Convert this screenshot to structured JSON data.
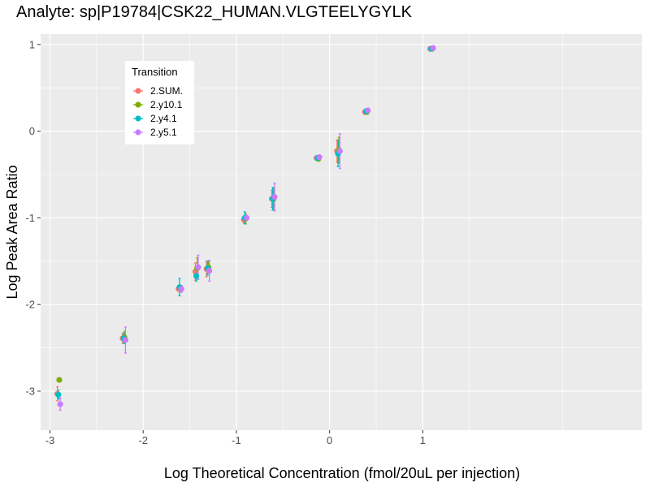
{
  "chart_data": {
    "type": "scatter",
    "title": "Analyte: sp|P19784|CSK22_HUMAN.VLGTEELYGYLK",
    "xlabel": "Log Theoretical Concentration (fmol/20uL per injection)",
    "ylabel": "Log Peak Area Ratio",
    "xlim": [
      -3.1,
      3.35
    ],
    "ylim": [
      -3.45,
      1.12
    ],
    "x_ticks": [
      -3,
      -2,
      -1,
      0,
      1
    ],
    "x_tick_labels": [
      "-3",
      "-2",
      "-1",
      "0",
      "1"
    ],
    "y_ticks": [
      -3,
      -2,
      -1,
      0,
      1
    ],
    "y_tick_labels": [
      "-3",
      "-2",
      "-1",
      "0",
      "1"
    ],
    "grid": true,
    "legend": {
      "title": "Transition",
      "position": "top-left inside"
    },
    "series": [
      {
        "name": "2.SUM.",
        "color": "#F8766D",
        "points": [
          {
            "x": -2.92,
            "y": -3.03,
            "err": 0.08
          },
          {
            "x": -2.22,
            "y": -2.39,
            "err": 0.05
          },
          {
            "x": -1.62,
            "y": -1.82,
            "err": 0.02
          },
          {
            "x": -1.44,
            "y": -1.62,
            "err": 0.1
          },
          {
            "x": -1.32,
            "y": -1.59,
            "err": 0.09
          },
          {
            "x": -0.92,
            "y": -1.02,
            "err": 0.04
          },
          {
            "x": -0.62,
            "y": -0.78,
            "err": 0.1
          },
          {
            "x": -0.14,
            "y": -0.31,
            "err": 0.02
          },
          {
            "x": 0.08,
            "y": -0.23,
            "err": 0.13
          },
          {
            "x": 0.38,
            "y": 0.22,
            "err": 0.01
          },
          {
            "x": 1.08,
            "y": 0.95,
            "err": 0.01
          }
        ]
      },
      {
        "name": "2.y10.1",
        "color": "#7CAE00",
        "points": [
          {
            "x": -2.9,
            "y": -2.87,
            "err": 0.0
          },
          {
            "x": -2.2,
            "y": -2.38,
            "err": 0.07
          },
          {
            "x": -1.6,
            "y": -1.81,
            "err": 0.03
          },
          {
            "x": -1.42,
            "y": -1.58,
            "err": 0.12
          },
          {
            "x": -1.3,
            "y": -1.57,
            "err": 0.07
          },
          {
            "x": -0.9,
            "y": -1.01,
            "err": 0.06
          },
          {
            "x": -0.6,
            "y": -0.78,
            "err": 0.13
          },
          {
            "x": -0.12,
            "y": -0.32,
            "err": 0.02
          },
          {
            "x": 0.1,
            "y": -0.22,
            "err": 0.15
          },
          {
            "x": 0.4,
            "y": 0.22,
            "err": 0.01
          },
          {
            "x": 1.1,
            "y": 0.95,
            "err": 0.02
          }
        ]
      },
      {
        "name": "2.y4.1",
        "color": "#00BFC4",
        "points": [
          {
            "x": -2.91,
            "y": -3.04,
            "err": 0.05
          },
          {
            "x": -2.21,
            "y": -2.39,
            "err": 0.06
          },
          {
            "x": -1.61,
            "y": -1.8,
            "err": 0.1
          },
          {
            "x": -1.43,
            "y": -1.67,
            "err": 0.06
          },
          {
            "x": -1.31,
            "y": -1.58,
            "err": 0.08
          },
          {
            "x": -0.91,
            "y": -1.0,
            "err": 0.07
          },
          {
            "x": -0.61,
            "y": -0.78,
            "err": 0.13
          },
          {
            "x": -0.13,
            "y": -0.31,
            "err": 0.03
          },
          {
            "x": 0.09,
            "y": -0.26,
            "err": 0.15
          },
          {
            "x": 0.39,
            "y": 0.23,
            "err": 0.01
          },
          {
            "x": 1.09,
            "y": 0.95,
            "err": 0.02
          }
        ]
      },
      {
        "name": "2.y5.1",
        "color": "#C77CFF",
        "points": [
          {
            "x": -2.89,
            "y": -3.15,
            "err": 0.07
          },
          {
            "x": -2.19,
            "y": -2.41,
            "err": 0.15
          },
          {
            "x": -1.59,
            "y": -1.82,
            "err": 0.04
          },
          {
            "x": -1.41,
            "y": -1.57,
            "err": 0.14
          },
          {
            "x": -1.29,
            "y": -1.61,
            "err": 0.12
          },
          {
            "x": -0.89,
            "y": -1.0,
            "err": 0.03
          },
          {
            "x": -0.59,
            "y": -0.76,
            "err": 0.16
          },
          {
            "x": -0.11,
            "y": -0.3,
            "err": 0.02
          },
          {
            "x": 0.11,
            "y": -0.23,
            "err": 0.2
          },
          {
            "x": 0.41,
            "y": 0.24,
            "err": 0.02
          },
          {
            "x": 1.11,
            "y": 0.96,
            "err": 0.02
          }
        ]
      }
    ]
  }
}
